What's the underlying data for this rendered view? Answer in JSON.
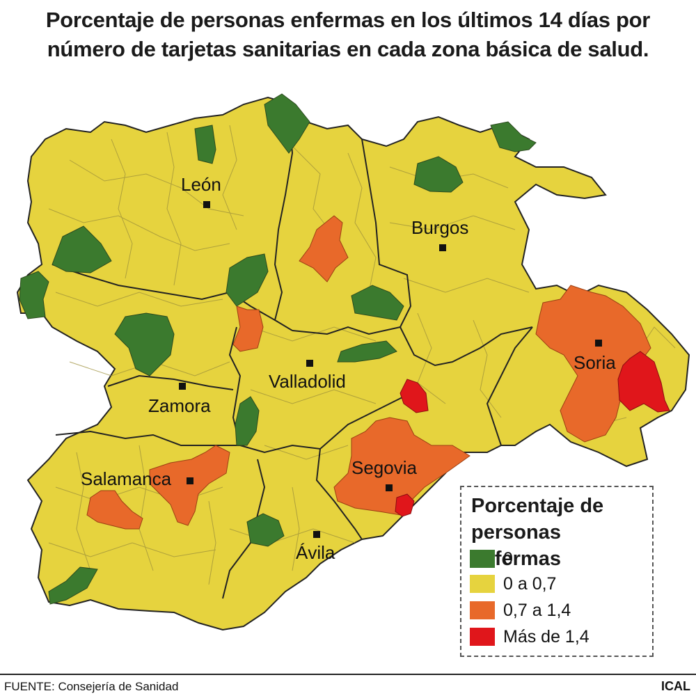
{
  "title": {
    "line1": "Porcentaje de personas enfermas en los últimos 14 días por",
    "line2": "número de tarjetas sanitarias en cada zona básica de salud."
  },
  "colors": {
    "zero": "#3b7a2e",
    "low": "#e6d33e",
    "mid": "#e8692a",
    "high": "#e0161b",
    "border": "#222222",
    "inner_border": "#9c8f3a"
  },
  "cities": {
    "leon": "León",
    "burgos": "Burgos",
    "soria": "Soria",
    "zamora": "Zamora",
    "valladolid": "Valladolid",
    "segovia": "Segovia",
    "salamanca": "Salamanca",
    "avila": "Ávila"
  },
  "legend": {
    "title_line1": "Porcentaje de",
    "title_line2": "personas enfermas",
    "items": [
      {
        "label": "0",
        "color": "#3b7a2e"
      },
      {
        "label": "0 a 0,7",
        "color": "#e6d33e"
      },
      {
        "label": "0,7 a 1,4",
        "color": "#e8692a"
      },
      {
        "label": "Más de 1,4",
        "color": "#e0161b"
      }
    ]
  },
  "footer": {
    "source": "FUENTE: Consejería de Sanidad",
    "credit": "ICAL"
  }
}
